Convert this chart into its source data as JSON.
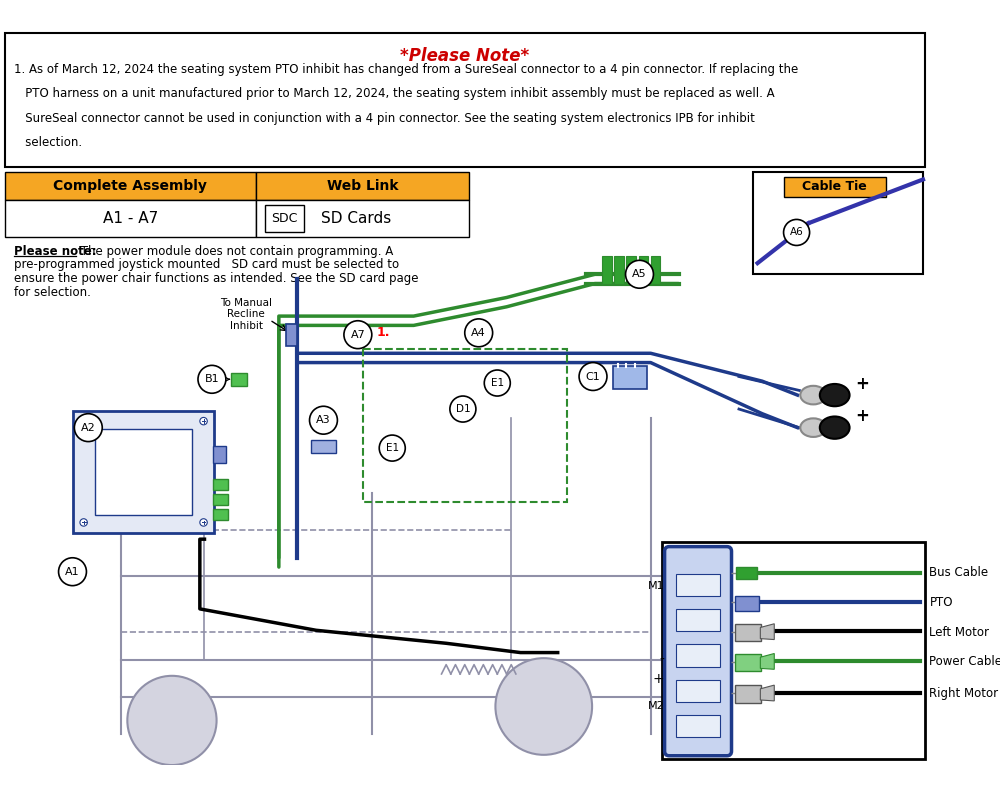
{
  "title": "*Please Note*",
  "title_color": "#CC0000",
  "bg_color": "#FFFFFF",
  "border_color": "#000000",
  "note_lines": [
    "1. As of March 12, 2024 the seating system PTO inhibit has changed from a SureSeal connector to a 4 pin connector. If replacing the",
    "   PTO harness on a unit manufactured prior to March 12, 2024, the seating system inhibit assembly must be replaced as well. A",
    "   SureSeal connector cannot be used in conjunction with a 4 pin connector. See the seating system electronics IPB for inhibit",
    "   selection."
  ],
  "complete_assembly_label": "Complete Assembly",
  "complete_assembly_value": "A1 - A7",
  "web_link_label": "Web Link",
  "sdc_label": "SDC",
  "sd_cards_label": "SD Cards",
  "orange_color": "#F5A623",
  "please_note2": "Please note:",
  "please_note2_rest": " The power module does not contain programming. A",
  "please_note2_lines": [
    "pre-programmed joystick mounted   SD card must be selected to",
    "ensure the power chair functions as intended. See the SD card page",
    "for selection."
  ],
  "cable_tie_label": "Cable Tie",
  "connector_labels": [
    "Bus Cable",
    "PTO",
    "Left Motor",
    "Power Cable",
    "Right Motor"
  ],
  "green_color": "#2E8B2E",
  "blue_color": "#1E3A8A",
  "black_color": "#000000",
  "to_manual_recline": "To Manual\nRecline\nInhibit",
  "figsize": [
    10.0,
    7.93
  ]
}
